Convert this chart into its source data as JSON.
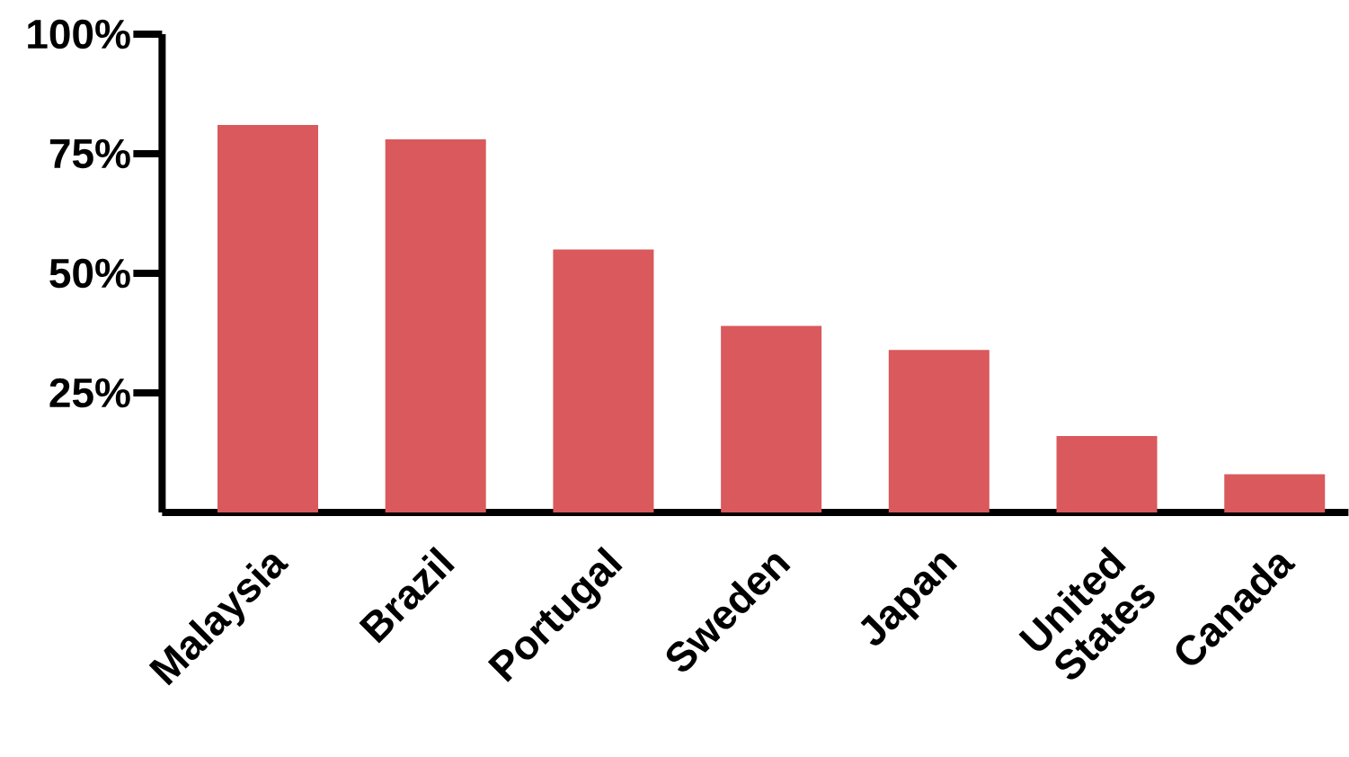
{
  "chart_data": {
    "type": "bar",
    "categories": [
      "Malaysia",
      "Brazil",
      "Portugal",
      "Sweden",
      "Japan",
      "United States",
      "Canada"
    ],
    "values": [
      81,
      78,
      55,
      39,
      34,
      16,
      8
    ],
    "color": "#d9595c",
    "ylim": [
      0,
      100
    ],
    "yticks": [
      {
        "value": 25,
        "label": "25%"
      },
      {
        "value": 50,
        "label": "50%"
      },
      {
        "value": 75,
        "label": "75%"
      },
      {
        "value": 100,
        "label": "100%"
      }
    ],
    "grid": false
  }
}
